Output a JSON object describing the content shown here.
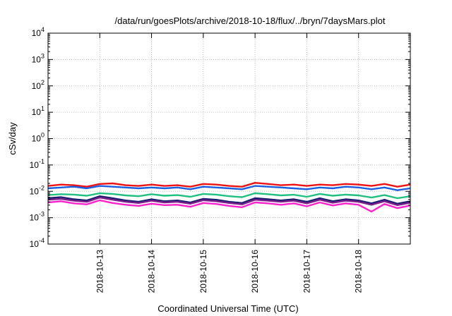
{
  "chart_data": {
    "type": "line",
    "title": "/data/run/goesPlots/archive/2018-10-18/flux/../bryn/7daysMars.plot",
    "xlabel": "Coordinated Universal Time (UTC)",
    "ylabel": "cSv/day",
    "y_scale": "log",
    "ylim_exponents": [
      -4,
      4
    ],
    "y_tick_labels": [
      {
        "base": "10",
        "exp": "-4"
      },
      {
        "base": "10",
        "exp": "-3"
      },
      {
        "base": "10",
        "exp": "-2"
      },
      {
        "base": "10",
        "exp": "-1"
      },
      {
        "base": "10",
        "exp": "0"
      },
      {
        "base": "10",
        "exp": "1"
      },
      {
        "base": "10",
        "exp": "2"
      },
      {
        "base": "10",
        "exp": "3"
      },
      {
        "base": "10",
        "exp": "4"
      }
    ],
    "x_range": [
      "2018-10-12 00:00",
      "2018-10-19 00:00"
    ],
    "x_ticks": [
      "2018-10-13",
      "2018-10-14",
      "2018-10-15",
      "2018-10-16",
      "2018-10-17",
      "2018-10-18"
    ],
    "x_tick_dates_fractional_days": [
      1,
      2,
      3,
      4,
      5,
      6
    ],
    "grid": true,
    "legend": "none",
    "x_day_offsets": [
      0,
      0.25,
      0.5,
      0.75,
      1,
      1.25,
      1.5,
      1.75,
      2,
      2.25,
      2.5,
      2.75,
      3,
      3.25,
      3.5,
      3.75,
      4,
      4.25,
      4.5,
      4.75,
      5,
      5.25,
      5.5,
      5.75,
      6,
      6.25,
      6.5,
      6.75,
      7
    ],
    "series": [
      {
        "color": "#ee1111",
        "values": [
          0.016,
          0.018,
          0.017,
          0.015,
          0.019,
          0.02,
          0.017,
          0.016,
          0.018,
          0.016,
          0.017,
          0.015,
          0.019,
          0.018,
          0.016,
          0.015,
          0.021,
          0.019,
          0.017,
          0.018,
          0.016,
          0.018,
          0.017,
          0.019,
          0.018,
          0.016,
          0.019,
          0.015,
          0.018
        ]
      },
      {
        "color": "#1a5fe0",
        "values": [
          0.013,
          0.014,
          0.015,
          0.013,
          0.016,
          0.015,
          0.014,
          0.013,
          0.014,
          0.013,
          0.014,
          0.012,
          0.015,
          0.014,
          0.013,
          0.012,
          0.016,
          0.015,
          0.014,
          0.013,
          0.012,
          0.014,
          0.013,
          0.015,
          0.014,
          0.012,
          0.014,
          0.011,
          0.013
        ]
      },
      {
        "color": "#20c080",
        "values": [
          0.0072,
          0.0078,
          0.0075,
          0.0068,
          0.0085,
          0.008,
          0.007,
          0.0065,
          0.0078,
          0.0068,
          0.0072,
          0.0062,
          0.008,
          0.0075,
          0.0065,
          0.006,
          0.0085,
          0.0078,
          0.007,
          0.0074,
          0.0062,
          0.008,
          0.0068,
          0.0075,
          0.007,
          0.0058,
          0.0072,
          0.0055,
          0.0065
        ]
      },
      {
        "color": "#1c1c70",
        "values": [
          0.0055,
          0.006,
          0.005,
          0.0045,
          0.0065,
          0.0055,
          0.0045,
          0.004,
          0.005,
          0.0042,
          0.0045,
          0.0038,
          0.0052,
          0.0048,
          0.004,
          0.0036,
          0.0055,
          0.005,
          0.0045,
          0.005,
          0.004,
          0.0055,
          0.0042,
          0.005,
          0.0045,
          0.0035,
          0.0048,
          0.0034,
          0.0042
        ]
      },
      {
        "color": "#7a1f8a",
        "values": [
          0.0048,
          0.0052,
          0.0044,
          0.004,
          0.0058,
          0.0048,
          0.004,
          0.0036,
          0.0044,
          0.0038,
          0.004,
          0.0034,
          0.0046,
          0.0042,
          0.0036,
          0.0032,
          0.0048,
          0.0044,
          0.004,
          0.0044,
          0.0035,
          0.0048,
          0.0037,
          0.0044,
          0.004,
          0.0031,
          0.0042,
          0.003,
          0.0037
        ]
      },
      {
        "color": "#ff22cc",
        "values": [
          0.0038,
          0.0042,
          0.0035,
          0.0032,
          0.0046,
          0.0036,
          0.0031,
          0.0028,
          0.0034,
          0.003,
          0.0031,
          0.0026,
          0.0036,
          0.0033,
          0.0028,
          0.0025,
          0.0038,
          0.0035,
          0.0031,
          0.0035,
          0.0027,
          0.0038,
          0.0029,
          0.0035,
          0.0031,
          0.0017,
          0.0033,
          0.0023,
          0.0029
        ]
      }
    ]
  }
}
